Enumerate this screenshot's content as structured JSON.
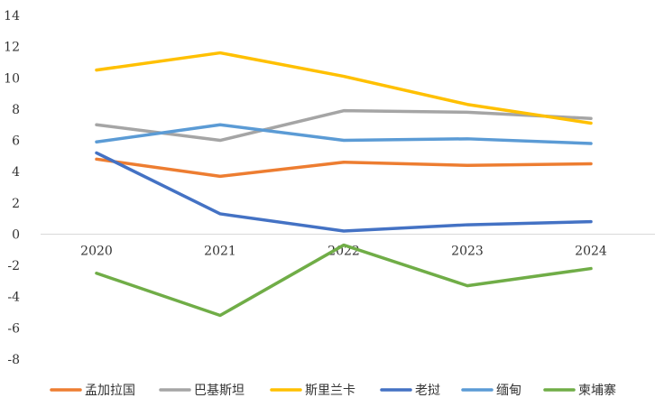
{
  "chart_data": {
    "type": "line",
    "categories": [
      "2020",
      "2021",
      "2022",
      "2023",
      "2024"
    ],
    "ylim": [
      -8,
      14
    ],
    "yticks": [
      -8,
      -6,
      -4,
      -2,
      0,
      2,
      4,
      6,
      8,
      10,
      12,
      14
    ],
    "grid": false,
    "legend_position": "bottom",
    "series": [
      {
        "name": "孟加拉国",
        "color": "#ED7D31",
        "values": [
          4.8,
          3.7,
          4.6,
          4.4,
          4.5
        ]
      },
      {
        "name": "巴基斯坦",
        "color": "#A5A5A5",
        "values": [
          7.0,
          6.0,
          7.9,
          7.8,
          7.4
        ]
      },
      {
        "name": "斯里兰卡",
        "color": "#FFC000",
        "values": [
          10.5,
          11.6,
          10.1,
          8.3,
          7.1
        ]
      },
      {
        "name": "老挝",
        "color": "#4472C4",
        "values": [
          5.2,
          1.3,
          0.2,
          0.6,
          0.8
        ]
      },
      {
        "name": "缅甸",
        "color": "#5B9BD5",
        "values": [
          5.9,
          7.0,
          6.0,
          6.1,
          5.8
        ]
      },
      {
        "name": "柬埔寨",
        "color": "#70AD47",
        "values": [
          -2.5,
          -5.2,
          -0.7,
          -3.3,
          -2.2
        ]
      }
    ]
  }
}
